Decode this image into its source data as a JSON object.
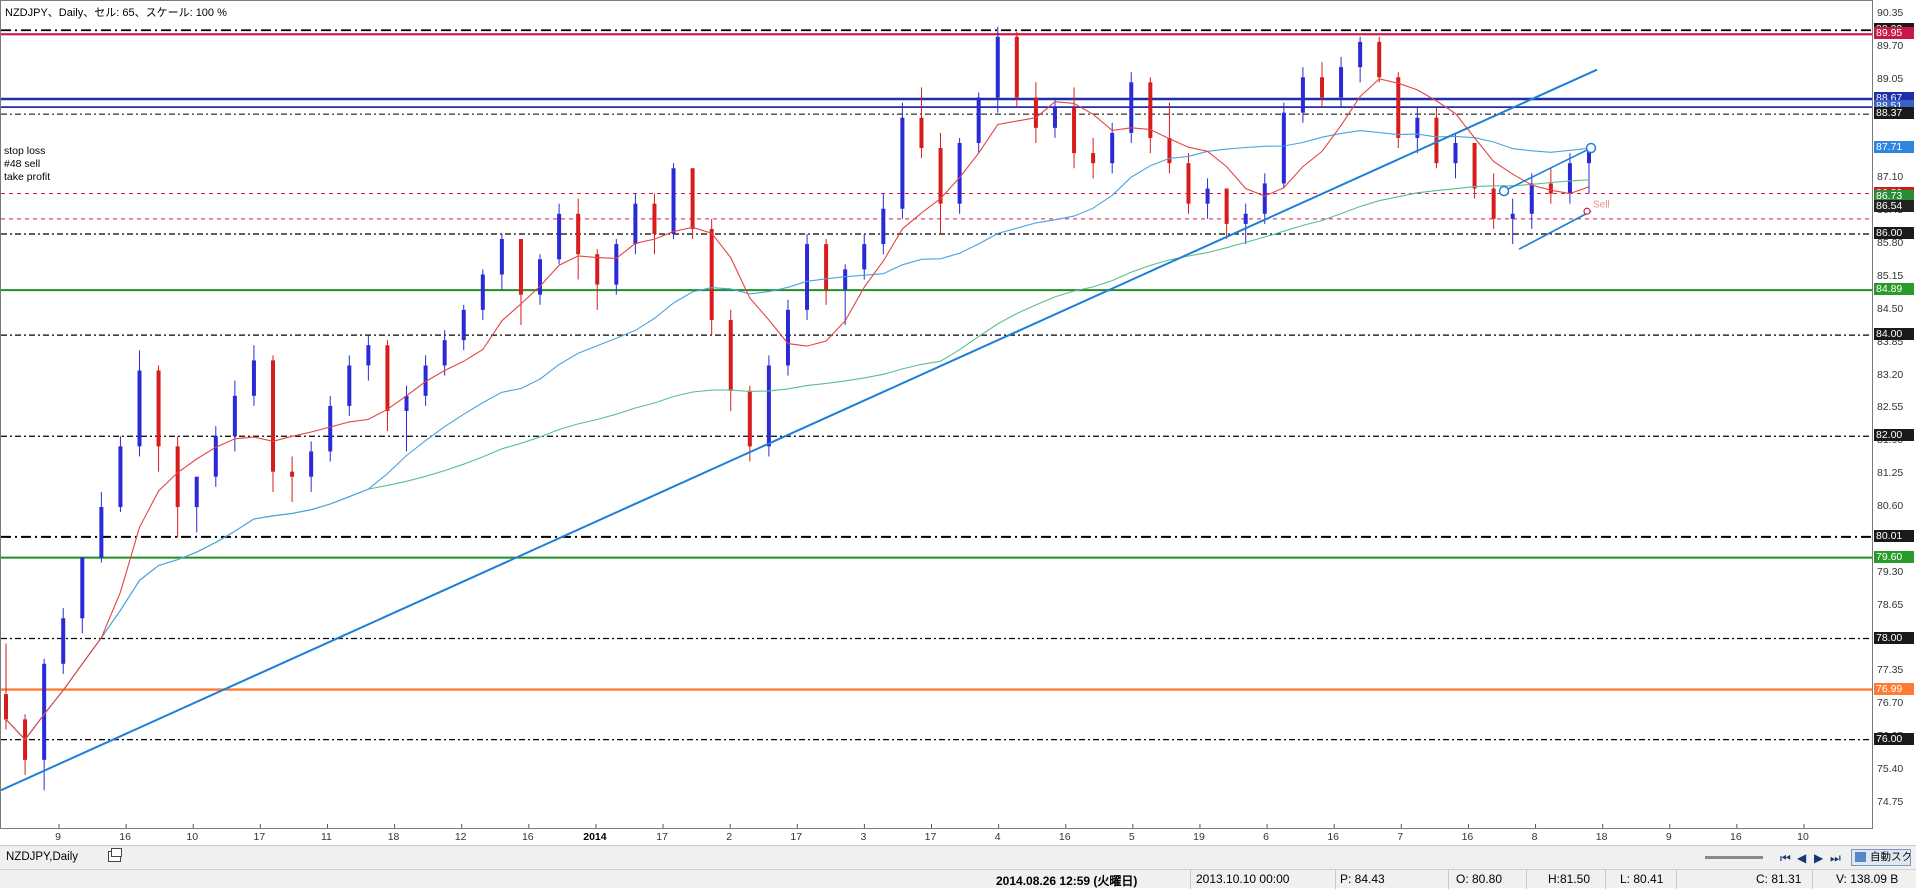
{
  "chart_title": "NZDJPY、Daily、セル: 65、スケール: 100 %",
  "order_labels": {
    "stop_loss": "stop loss",
    "order": "#48 sell",
    "take_profit": "take profit",
    "sell_marker": "Sell"
  },
  "colors": {
    "bull": "#2a2ad6",
    "bear": "#d81b1b",
    "ma_fast": "#e34444",
    "ma_mid": "#4aa3e0",
    "ma_slow": "#5cbf8a",
    "trendline": "#1e7fd8"
  },
  "chart_data": {
    "type": "candlestick",
    "symbol": "NZDJPY",
    "timeframe": "Daily",
    "ylim": [
      74.45,
      90.45
    ],
    "y_ticks": [
      "90.35",
      "89.70",
      "89.05",
      "88.40",
      "87.75",
      "87.10",
      "86.45",
      "85.80",
      "85.15",
      "84.50",
      "83.85",
      "83.20",
      "82.55",
      "81.90",
      "81.25",
      "80.60",
      "79.95",
      "79.30",
      "78.65",
      "78.00",
      "77.35",
      "76.70",
      "76.05",
      "75.40",
      "74.75"
    ],
    "x_labels": [
      {
        "text": "9",
        "bold": false
      },
      {
        "text": "16",
        "bold": false
      },
      {
        "text": "10",
        "bold": false
      },
      {
        "text": "17",
        "bold": false
      },
      {
        "text": "11",
        "bold": false
      },
      {
        "text": "18",
        "bold": false
      },
      {
        "text": "12",
        "bold": false
      },
      {
        "text": "16",
        "bold": false
      },
      {
        "text": "2014",
        "bold": true
      },
      {
        "text": "17",
        "bold": false
      },
      {
        "text": "2",
        "bold": false
      },
      {
        "text": "17",
        "bold": false
      },
      {
        "text": "3",
        "bold": false
      },
      {
        "text": "17",
        "bold": false
      },
      {
        "text": "4",
        "bold": false
      },
      {
        "text": "16",
        "bold": false
      },
      {
        "text": "5",
        "bold": false
      },
      {
        "text": "19",
        "bold": false
      },
      {
        "text": "6",
        "bold": false
      },
      {
        "text": "16",
        "bold": false
      },
      {
        "text": "7",
        "bold": false
      },
      {
        "text": "16",
        "bold": false
      },
      {
        "text": "8",
        "bold": false
      },
      {
        "text": "18",
        "bold": false
      },
      {
        "text": "9",
        "bold": false
      },
      {
        "text": "16",
        "bold": false
      },
      {
        "text": "10",
        "bold": false
      }
    ],
    "candles_path": [
      [
        76.9,
        77.9,
        76.2
      ],
      [
        76.4,
        76.5,
        75.3
      ],
      [
        75.6,
        77.6,
        75.0
      ],
      [
        77.5,
        78.6,
        77.3
      ],
      [
        78.4,
        79.6,
        78.1
      ],
      [
        79.6,
        80.9,
        79.5
      ],
      [
        80.6,
        82.0,
        80.5
      ],
      [
        81.8,
        83.7,
        81.6
      ],
      [
        83.3,
        83.4,
        81.3
      ],
      [
        81.8,
        82.0,
        80.0
      ],
      [
        80.6,
        81.2,
        80.1
      ],
      [
        81.2,
        82.2,
        81.0
      ],
      [
        82.0,
        83.1,
        81.7
      ],
      [
        82.8,
        83.8,
        82.6
      ],
      [
        83.5,
        83.6,
        80.9
      ],
      [
        81.3,
        81.6,
        80.7
      ],
      [
        81.2,
        81.9,
        80.9
      ],
      [
        81.7,
        82.8,
        81.5
      ],
      [
        82.6,
        83.6,
        82.4
      ],
      [
        83.4,
        84.0,
        83.1
      ],
      [
        83.8,
        83.9,
        82.1
      ],
      [
        82.5,
        83.0,
        81.7
      ],
      [
        82.8,
        83.6,
        82.6
      ],
      [
        83.4,
        84.1,
        83.2
      ],
      [
        83.9,
        84.6,
        83.7
      ],
      [
        84.5,
        85.3,
        84.3
      ],
      [
        85.2,
        86.0,
        84.9
      ],
      [
        85.9,
        85.9,
        84.2
      ],
      [
        84.8,
        85.6,
        84.6
      ],
      [
        85.5,
        86.6,
        85.4
      ],
      [
        86.4,
        86.7,
        85.1
      ],
      [
        85.6,
        85.7,
        84.5
      ],
      [
        85.0,
        85.9,
        84.8
      ],
      [
        85.8,
        86.8,
        85.6
      ],
      [
        86.6,
        86.8,
        85.6
      ],
      [
        86.0,
        87.4,
        85.9
      ],
      [
        87.3,
        87.3,
        85.9
      ],
      [
        86.1,
        86.3,
        84.0
      ],
      [
        84.3,
        84.5,
        82.5
      ],
      [
        82.9,
        83.0,
        81.5
      ],
      [
        81.8,
        83.6,
        81.6
      ],
      [
        83.4,
        84.7,
        83.2
      ],
      [
        84.5,
        86.0,
        84.3
      ],
      [
        85.8,
        85.9,
        84.6
      ],
      [
        84.9,
        85.4,
        84.2
      ],
      [
        85.3,
        86.0,
        85.1
      ],
      [
        85.8,
        86.8,
        85.6
      ],
      [
        86.5,
        88.6,
        86.3
      ],
      [
        88.3,
        88.9,
        87.5
      ],
      [
        87.7,
        88.0,
        86.0
      ],
      [
        86.6,
        87.9,
        86.4
      ],
      [
        87.8,
        88.8,
        87.6
      ],
      [
        88.7,
        90.1,
        88.4
      ],
      [
        89.9,
        90.0,
        88.5
      ],
      [
        88.7,
        89.0,
        87.8
      ],
      [
        88.1,
        88.7,
        87.9
      ],
      [
        88.5,
        88.9,
        87.3
      ],
      [
        87.6,
        87.9,
        87.1
      ],
      [
        87.4,
        88.2,
        87.2
      ],
      [
        88.0,
        89.2,
        87.8
      ],
      [
        89.0,
        89.1,
        87.6
      ],
      [
        87.9,
        88.6,
        87.2
      ],
      [
        87.4,
        87.6,
        86.4
      ],
      [
        86.6,
        87.1,
        86.3
      ],
      [
        86.9,
        86.9,
        85.9
      ],
      [
        86.2,
        86.6,
        85.8
      ],
      [
        86.4,
        87.2,
        86.2
      ],
      [
        87.0,
        88.6,
        86.9
      ],
      [
        88.4,
        89.3,
        88.2
      ],
      [
        89.1,
        89.4,
        88.5
      ],
      [
        88.7,
        89.5,
        88.5
      ],
      [
        89.3,
        89.9,
        89.0
      ],
      [
        89.8,
        89.9,
        89.0
      ],
      [
        89.1,
        89.2,
        87.7
      ],
      [
        87.9,
        88.5,
        87.6
      ],
      [
        88.3,
        88.5,
        87.3
      ],
      [
        87.4,
        88.0,
        87.1
      ],
      [
        87.8,
        87.8,
        86.7
      ],
      [
        86.9,
        87.2,
        86.1
      ],
      [
        86.3,
        86.7,
        85.8
      ],
      [
        86.4,
        87.2,
        86.1
      ],
      [
        87.0,
        87.3,
        86.6
      ],
      [
        86.8,
        87.6,
        86.6
      ],
      [
        87.4,
        87.6,
        86.8
      ]
    ],
    "key_levels": [
      {
        "price": 90.03,
        "color": "#000000",
        "dash": "10 4 2 4",
        "width": 1.8,
        "tag": "90.03",
        "tag_bg": "#1a1a1a"
      },
      {
        "price": 89.95,
        "color": "#d01c4c",
        "dash": "",
        "width": 2.2,
        "tag": "89.95",
        "tag_bg": "#c8184a"
      },
      {
        "price": 88.67,
        "color": "#1f2fa8",
        "dash": "",
        "width": 2.6,
        "tag": "88.67",
        "tag_bg": "#1f2fa8"
      },
      {
        "price": 88.51,
        "color": "#1f2fa8",
        "dash": "",
        "width": 1.8,
        "tag": "88.51",
        "tag_bg": "#3a62c8"
      },
      {
        "price": 88.37,
        "color": "#000000",
        "dash": "6 3 2 3",
        "width": 1,
        "tag": "88.37",
        "tag_bg": "#1a1a1a"
      },
      {
        "price": 87.71,
        "color": "#4a90d9",
        "dash": "",
        "width": 0,
        "tag": "87.71",
        "tag_bg": "#2f86e0"
      },
      {
        "price": 86.8,
        "color": "#d01c4c",
        "dash": "4 4",
        "width": 1,
        "tag": "86.80",
        "tag_bg": "#c82020"
      },
      {
        "price": 86.73,
        "color": "#2a8a2a",
        "dash": "",
        "width": 0,
        "tag": "86.73",
        "tag_bg": "#2b8c36"
      },
      {
        "price": 86.54,
        "color": "#222222",
        "dash": "",
        "width": 0,
        "tag": "86.54",
        "tag_bg": "#222222"
      },
      {
        "price": 86.3,
        "color": "#d01c4c",
        "dash": "4 4",
        "width": 1,
        "tag": "",
        "tag_bg": ""
      },
      {
        "price": 86.0,
        "color": "#000000",
        "dash": "6 3 2 3",
        "width": 1.3,
        "tag": "86.00",
        "tag_bg": "#1a1a1a"
      },
      {
        "price": 84.89,
        "color": "#1f8f1f",
        "dash": "",
        "width": 2,
        "tag": "84.89",
        "tag_bg": "#2a9a2a"
      },
      {
        "price": 84.0,
        "color": "#000000",
        "dash": "6 3 2 3",
        "width": 1.3,
        "tag": "84.00",
        "tag_bg": "#1a1a1a"
      },
      {
        "price": 82.0,
        "color": "#000000",
        "dash": "6 3 2 3",
        "width": 1.3,
        "tag": "82.00",
        "tag_bg": "#1a1a1a"
      },
      {
        "price": 80.01,
        "color": "#000000",
        "dash": "10 4 2 4",
        "width": 2,
        "tag": "80.01",
        "tag_bg": "#1a1a1a"
      },
      {
        "price": 79.6,
        "color": "#1f8f1f",
        "dash": "",
        "width": 2,
        "tag": "79.60",
        "tag_bg": "#2a9a2a"
      },
      {
        "price": 78.0,
        "color": "#000000",
        "dash": "6 3 2 3",
        "width": 1.3,
        "tag": "78.00",
        "tag_bg": "#1a1a1a"
      },
      {
        "price": 76.99,
        "color": "#ff7a33",
        "dash": "",
        "width": 2.4,
        "tag": "76.99",
        "tag_bg": "#ff7a33"
      },
      {
        "price": 76.0,
        "color": "#000000",
        "dash": "6 3 2 3",
        "width": 1.3,
        "tag": "76.00",
        "tag_bg": "#1a1a1a"
      }
    ]
  },
  "tab": {
    "name": "NZDJPY,Daily",
    "auto_scroll_label": "自動スクロール"
  },
  "status_bar": {
    "datetime": "2014.08.26 12:59 (火曜日)",
    "bar_time": "2013.10.10 00:00",
    "p": "P: 84.43",
    "o": "O: 80.80",
    "h": "H:81.50",
    "l": "L: 80.41",
    "c": "C: 81.31",
    "v": "V: 138.09 B"
  }
}
